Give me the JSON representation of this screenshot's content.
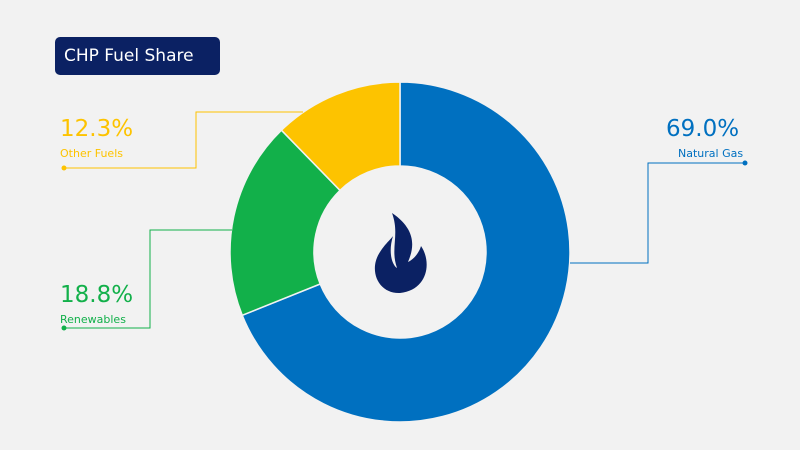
{
  "chart_data": {
    "type": "pie",
    "title": "CHP Fuel Share",
    "slices": [
      {
        "label": "Natural Gas",
        "value": 69.0,
        "display": "69.0%",
        "color": "#0070c0"
      },
      {
        "label": "Renewables",
        "value": 18.8,
        "display": "18.8%",
        "color": "#12b04a"
      },
      {
        "label": "Other Fuels",
        "value": 12.3,
        "display": "12.3%",
        "color": "#fdc300"
      }
    ],
    "donut": true,
    "center_icon": "flame-icon",
    "center_icon_color": "#0b2163"
  }
}
